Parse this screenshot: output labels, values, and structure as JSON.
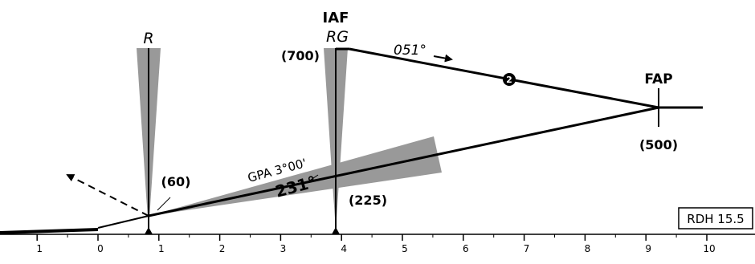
{
  "fixes": {
    "iaf": {
      "label": "IAF",
      "navaid": "RG",
      "altitude": "(700)"
    },
    "fap": {
      "label": "FAP",
      "altitude": "(500)"
    },
    "mapt": {
      "navaid": "R",
      "altitude": "(60)"
    },
    "step_down": {
      "altitude": "(225)"
    }
  },
  "inbound_course": "051°",
  "final_course": "231°",
  "glide_path": "GPA 3°00'",
  "rdh": "RDH 15.5",
  "waypoint_marker": "2",
  "distance_scale": {
    "ticks": [
      "1",
      "0",
      "1",
      "2",
      "3",
      "4",
      "5",
      "6",
      "7",
      "8",
      "9",
      "10"
    ]
  },
  "colors": {
    "cone": "#999999",
    "line": "#000000",
    "background": "#ffffff"
  },
  "icons": {
    "missed_approach": "dashed-arrow-icon",
    "fix_marker": "triangle-icon"
  }
}
